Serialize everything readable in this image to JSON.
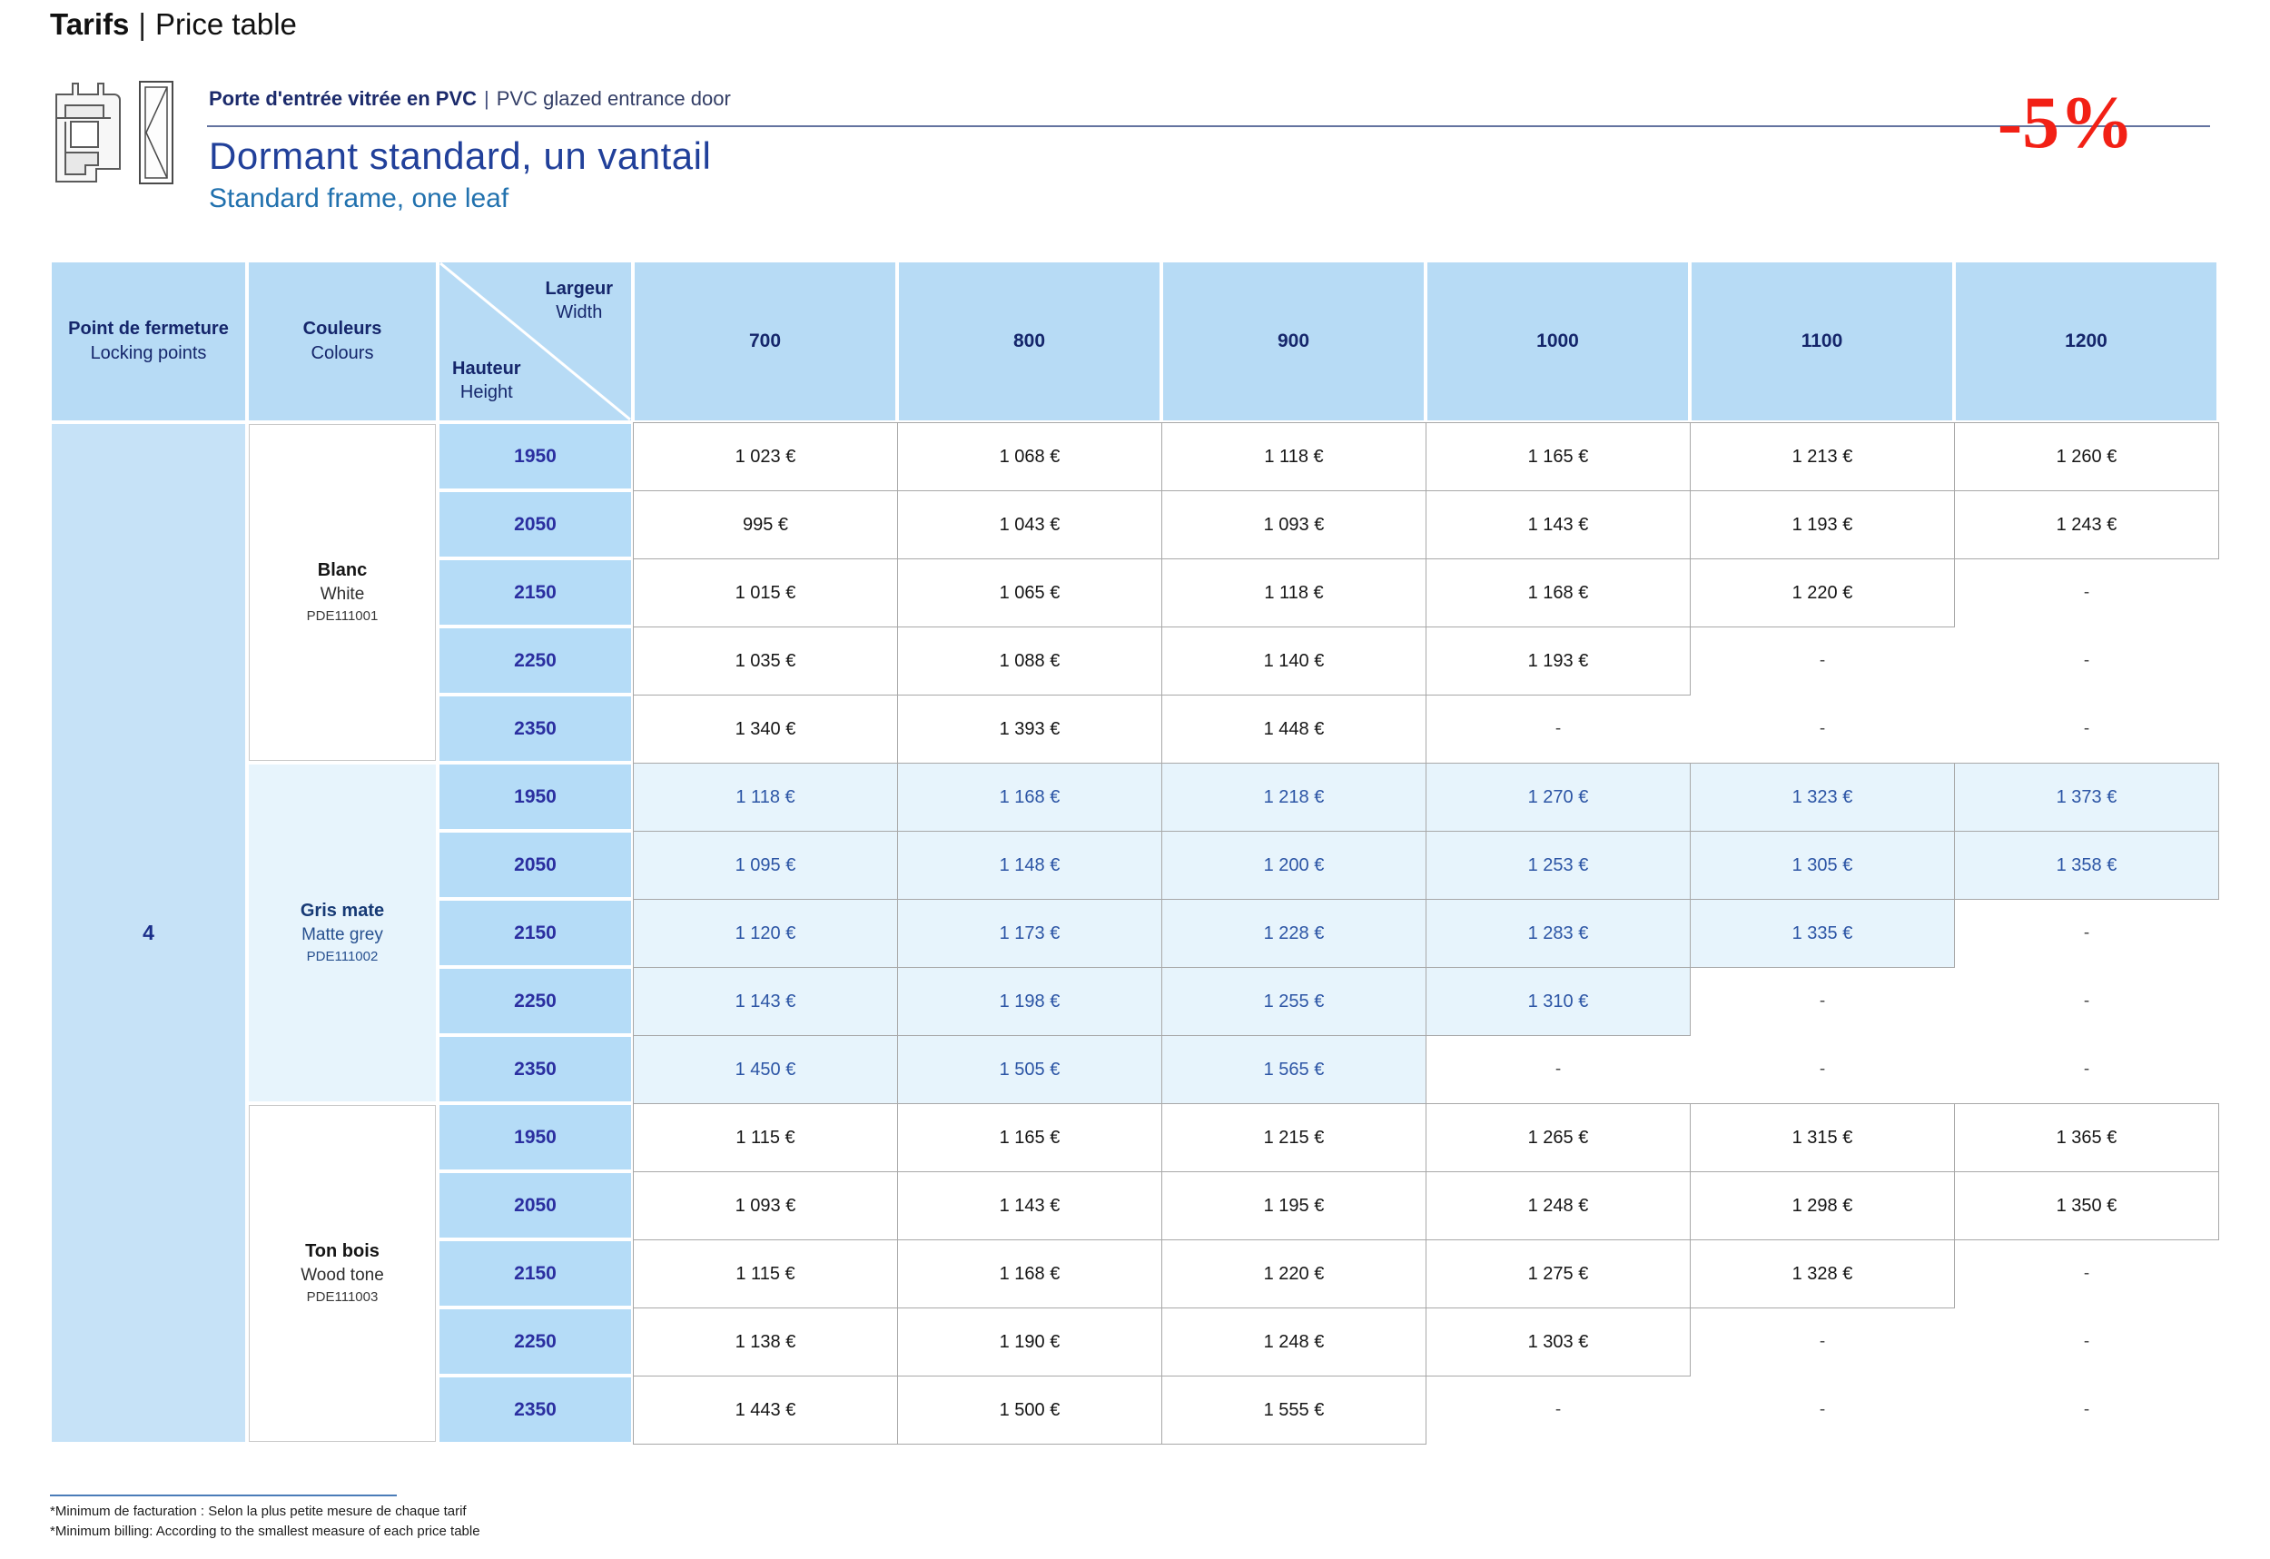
{
  "page": {
    "title_bold": "Tarifs",
    "title_sep": "|",
    "title_rest": "Price table"
  },
  "product": {
    "name_fr": "Porte d'entrée vitrée en PVC",
    "sep": "|",
    "name_en": "PVC glazed entrance door",
    "variant_fr": "Dormant standard, un vantail",
    "variant_en": "Standard frame, one leaf",
    "discount": "-5%"
  },
  "icons": {
    "door_icon": "door-technical-drawing-icon"
  },
  "table": {
    "header": {
      "locking_fr": "Point de fermeture",
      "locking_en": "Locking points",
      "colours_fr": "Couleurs",
      "colours_en": "Colours",
      "width_fr": "Largeur",
      "width_en": "Width",
      "height_fr": "Hauteur",
      "height_en": "Height",
      "widths": [
        "700",
        "800",
        "900",
        "1000",
        "1100",
        "1200"
      ]
    },
    "locking_points": "4",
    "sections": [
      {
        "color_fr": "Blanc",
        "color_en": "White",
        "code": "PDE111001",
        "style": "white",
        "rows": [
          {
            "height": "1950",
            "prices": [
              "1 023 €",
              "1 068 €",
              "1 118 €",
              "1 165 €",
              "1 213 €",
              "1 260 €"
            ]
          },
          {
            "height": "2050",
            "prices": [
              "995 €",
              "1 043 €",
              "1 093 €",
              "1 143 €",
              "1 193 €",
              "1 243 €"
            ]
          },
          {
            "height": "2150",
            "prices": [
              "1 015 €",
              "1 065 €",
              "1 118 €",
              "1 168 €",
              "1 220 €",
              "-"
            ]
          },
          {
            "height": "2250",
            "prices": [
              "1 035 €",
              "1 088 €",
              "1 140 €",
              "1 193 €",
              "-",
              "-"
            ]
          },
          {
            "height": "2350",
            "prices": [
              "1 340 €",
              "1 393 €",
              "1 448 €",
              "-",
              "-",
              "-"
            ]
          }
        ]
      },
      {
        "color_fr": "Gris mate",
        "color_en": "Matte grey",
        "code": "PDE111002",
        "style": "blue",
        "rows": [
          {
            "height": "1950",
            "prices": [
              "1 118 €",
              "1 168 €",
              "1 218 €",
              "1 270 €",
              "1 323 €",
              "1 373 €"
            ]
          },
          {
            "height": "2050",
            "prices": [
              "1 095 €",
              "1 148 €",
              "1 200 €",
              "1 253 €",
              "1 305 €",
              "1 358 €"
            ]
          },
          {
            "height": "2150",
            "prices": [
              "1 120 €",
              "1 173 €",
              "1 228 €",
              "1 283 €",
              "1 335 €",
              "-"
            ]
          },
          {
            "height": "2250",
            "prices": [
              "1 143 €",
              "1 198 €",
              "1 255 €",
              "1 310 €",
              "-",
              "-"
            ]
          },
          {
            "height": "2350",
            "prices": [
              "1 450 €",
              "1 505 €",
              "1 565 €",
              "-",
              "-",
              "-"
            ]
          }
        ]
      },
      {
        "color_fr": "Ton bois",
        "color_en": "Wood tone",
        "code": "PDE111003",
        "style": "white",
        "rows": [
          {
            "height": "1950",
            "prices": [
              "1 115 €",
              "1 165 €",
              "1 215 €",
              "1 265 €",
              "1 315 €",
              "1 365 €"
            ]
          },
          {
            "height": "2050",
            "prices": [
              "1 093 €",
              "1 143 €",
              "1 195 €",
              "1 248 €",
              "1 298 €",
              "1 350 €"
            ]
          },
          {
            "height": "2150",
            "prices": [
              "1 115 €",
              "1 168 €",
              "1 220 €",
              "1 275 €",
              "1 328 €",
              "-"
            ]
          },
          {
            "height": "2250",
            "prices": [
              "1 138 €",
              "1 190 €",
              "1 248 €",
              "1 303 €",
              "-",
              "-"
            ]
          },
          {
            "height": "2350",
            "prices": [
              "1 443 €",
              "1 500 €",
              "1 555 €",
              "-",
              "-",
              "-"
            ]
          }
        ]
      }
    ]
  },
  "footnote": {
    "fr": "*Minimum de facturation : Selon la plus petite mesure de chaque tarif",
    "en": "*Minimum billing: According to the smallest measure of each price table"
  },
  "colors": {
    "header_blue": "#b7dbf5",
    "height_cell_blue": "#b5dcf7",
    "locking_col_blue": "#c6e2f7",
    "grey_section_bg": "#e7f4fc",
    "navy_header_text": "#15266b",
    "height_text_blue": "#2b2fa0",
    "grey_price_text": "#2c55a5",
    "title_navy": "#21409a",
    "subtitle_blue": "#2171ae",
    "discount_red": "#f22015",
    "rule_blue": "#63739f"
  }
}
